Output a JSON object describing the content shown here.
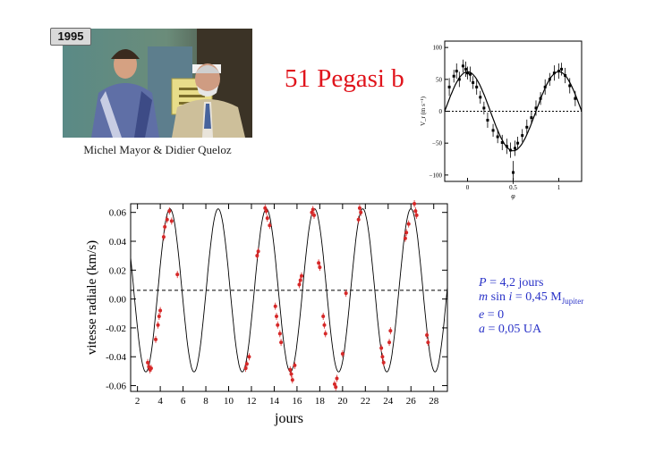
{
  "badge": "1995",
  "caption": "Michel Mayor & Didier Queloz",
  "title": "51 Pegasi b",
  "params": {
    "P_sym": "P",
    "P_val": " = 4,2 jours",
    "m_sym": "m",
    "m_mid": " sin ",
    "i_sym": "i",
    "m_val": " = 0,45 M",
    "m_sub": "Jupiter",
    "e_sym": "e",
    "e_val": " = 0",
    "a_sym": "a",
    "a_val": " = 0,05 UA"
  },
  "colors": {
    "title": "#e0141c",
    "params": "#2a33c8",
    "points": "#d62828"
  },
  "chart_data": [
    {
      "type": "line",
      "title": "",
      "xlabel": "φ",
      "ylabel": "V_r (m s⁻¹)",
      "xlim": [
        -0.25,
        1.25
      ],
      "ylim": [
        -110,
        110
      ],
      "xticks": [
        "0",
        "0.5",
        "1"
      ],
      "yticks": [
        "100",
        "50",
        "0",
        "−50",
        "−100"
      ],
      "grid": false,
      "reference_line_y": 0,
      "series": [
        {
          "points": [
            [
              -0.2,
              38
            ],
            [
              -0.15,
              55
            ],
            [
              -0.12,
              63
            ],
            [
              -0.09,
              50
            ],
            [
              -0.05,
              71
            ],
            [
              -0.02,
              66
            ],
            [
              0.0,
              60
            ],
            [
              0.03,
              58
            ],
            [
              0.06,
              45
            ],
            [
              0.1,
              38
            ],
            [
              0.14,
              22
            ],
            [
              0.18,
              5
            ],
            [
              0.22,
              -14
            ],
            [
              0.28,
              -30
            ],
            [
              0.33,
              -40
            ],
            [
              0.38,
              -49
            ],
            [
              0.43,
              -55
            ],
            [
              0.47,
              -61
            ],
            [
              0.5,
              -96
            ],
            [
              0.52,
              -58
            ],
            [
              0.55,
              -50
            ],
            [
              0.6,
              -38
            ],
            [
              0.65,
              -25
            ],
            [
              0.7,
              -10
            ],
            [
              0.75,
              5
            ],
            [
              0.8,
              20
            ],
            [
              0.85,
              38
            ],
            [
              0.9,
              50
            ],
            [
              0.95,
              60
            ],
            [
              1.0,
              63
            ],
            [
              1.03,
              66
            ],
            [
              1.07,
              56
            ],
            [
              1.12,
              40
            ],
            [
              1.18,
              20
            ]
          ],
          "errors": [
            14,
            10,
            12,
            12,
            10,
            12,
            10,
            12,
            10,
            12,
            10,
            10,
            12,
            10,
            10,
            12,
            12,
            12,
            18,
            12,
            10,
            10,
            12,
            10,
            12,
            10,
            12,
            10,
            12,
            12,
            10,
            12,
            12,
            12
          ]
        }
      ]
    },
    {
      "type": "scatter",
      "title": "",
      "xlabel": "jours",
      "ylabel": "vitesse radiale (km/s)",
      "xlim": [
        1.4,
        29.2
      ],
      "ylim": [
        -0.064,
        0.066
      ],
      "xticks": [
        "2",
        "4",
        "6",
        "8",
        "10",
        "12",
        "14",
        "16",
        "18",
        "20",
        "22",
        "24",
        "26",
        "28"
      ],
      "yticks": [
        "0.06",
        "0.04",
        "0.02",
        "0.00",
        "-0.02",
        "-0.04",
        "-0.06"
      ],
      "grid": false,
      "reference_line_y": 0.006,
      "series": [
        {
          "points": [
            [
              2.9,
              -0.044
            ],
            [
              3.0,
              -0.047
            ],
            [
              3.1,
              -0.049
            ],
            [
              3.2,
              -0.048
            ],
            [
              3.6,
              -0.028
            ],
            [
              3.8,
              -0.018
            ],
            [
              3.9,
              -0.012
            ],
            [
              4.0,
              -0.008
            ],
            [
              4.3,
              0.043
            ],
            [
              4.4,
              0.05
            ],
            [
              4.6,
              0.055
            ],
            [
              4.8,
              0.061
            ],
            [
              5.0,
              0.054
            ],
            [
              5.5,
              0.017
            ],
            [
              11.5,
              -0.048
            ],
            [
              11.6,
              -0.045
            ],
            [
              11.8,
              -0.04
            ],
            [
              12.5,
              0.03
            ],
            [
              12.6,
              0.033
            ],
            [
              13.2,
              0.063
            ],
            [
              13.3,
              0.061
            ],
            [
              13.4,
              0.056
            ],
            [
              13.6,
              0.051
            ],
            [
              14.1,
              -0.005
            ],
            [
              14.2,
              -0.012
            ],
            [
              14.3,
              -0.018
            ],
            [
              14.5,
              -0.024
            ],
            [
              14.6,
              -0.03
            ],
            [
              15.4,
              -0.049
            ],
            [
              15.5,
              -0.052
            ],
            [
              15.6,
              -0.056
            ],
            [
              15.8,
              -0.046
            ],
            [
              16.2,
              0.01
            ],
            [
              16.3,
              0.013
            ],
            [
              16.4,
              0.016
            ],
            [
              17.3,
              0.06
            ],
            [
              17.4,
              0.062
            ],
            [
              17.5,
              0.058
            ],
            [
              17.9,
              0.025
            ],
            [
              18.0,
              0.022
            ],
            [
              18.3,
              -0.012
            ],
            [
              18.4,
              -0.018
            ],
            [
              18.5,
              -0.024
            ],
            [
              19.3,
              -0.059
            ],
            [
              19.4,
              -0.061
            ],
            [
              19.5,
              -0.055
            ],
            [
              20.0,
              -0.038
            ],
            [
              20.3,
              0.004
            ],
            [
              21.4,
              0.055
            ],
            [
              21.5,
              0.063
            ],
            [
              21.6,
              0.06
            ],
            [
              23.4,
              -0.034
            ],
            [
              23.5,
              -0.04
            ],
            [
              23.6,
              -0.044
            ],
            [
              24.1,
              -0.03
            ],
            [
              24.2,
              -0.022
            ],
            [
              25.5,
              0.042
            ],
            [
              25.6,
              0.046
            ],
            [
              25.8,
              0.052
            ],
            [
              26.3,
              0.066
            ],
            [
              26.4,
              0.061
            ],
            [
              26.5,
              0.058
            ],
            [
              27.4,
              -0.025
            ],
            [
              27.5,
              -0.03
            ]
          ]
        }
      ]
    }
  ]
}
